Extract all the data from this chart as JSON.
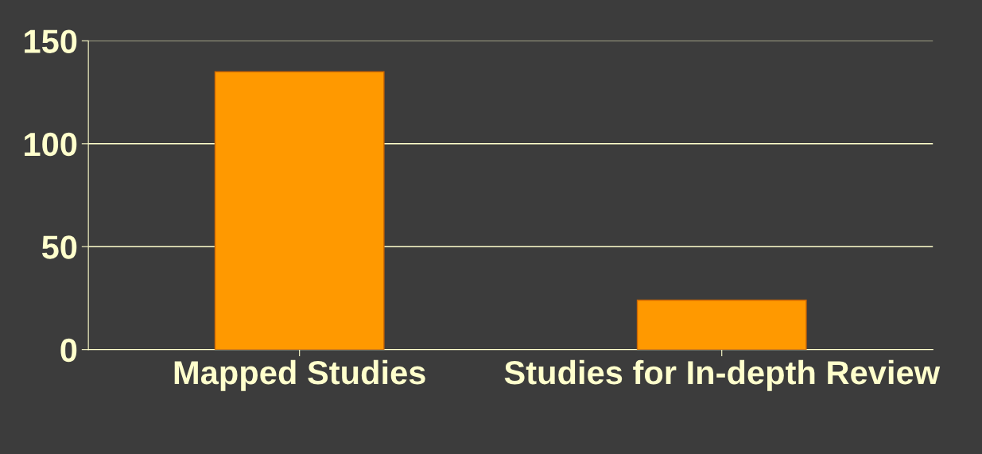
{
  "chart_data": {
    "type": "bar",
    "categories": [
      "Mapped Studies",
      "Studies for In-depth Review"
    ],
    "values": [
      135,
      24
    ],
    "color": "#ff9900",
    "ylim": [
      0,
      150
    ],
    "yticks": [
      0,
      50,
      100,
      150
    ],
    "grid": "y",
    "legend": false
  }
}
